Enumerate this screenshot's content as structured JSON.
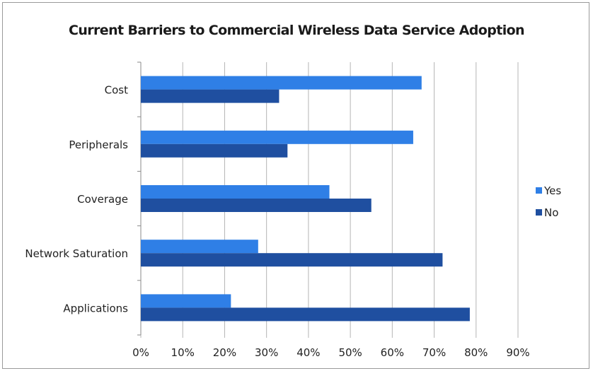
{
  "chart_data": {
    "type": "bar",
    "orientation": "horizontal",
    "title": "Current Barriers to Commercial Wireless Data Service Adoption",
    "categories": [
      "Cost",
      "Peripherals",
      "Coverage",
      "Network Saturation",
      "Applications"
    ],
    "series": [
      {
        "name": "Yes",
        "color": "#2f7fe6",
        "values": [
          67,
          65,
          45,
          28,
          21.5
        ]
      },
      {
        "name": "No",
        "color": "#1f4fa0",
        "values": [
          33,
          35,
          55,
          72,
          78.5
        ]
      }
    ],
    "xlim": [
      0,
      90
    ],
    "xticks": [
      "0%",
      "10%",
      "20%",
      "30%",
      "40%",
      "50%",
      "60%",
      "70%",
      "80%",
      "90%"
    ],
    "xlabel": "",
    "ylabel": "",
    "grid": true,
    "legend_position": "right"
  }
}
